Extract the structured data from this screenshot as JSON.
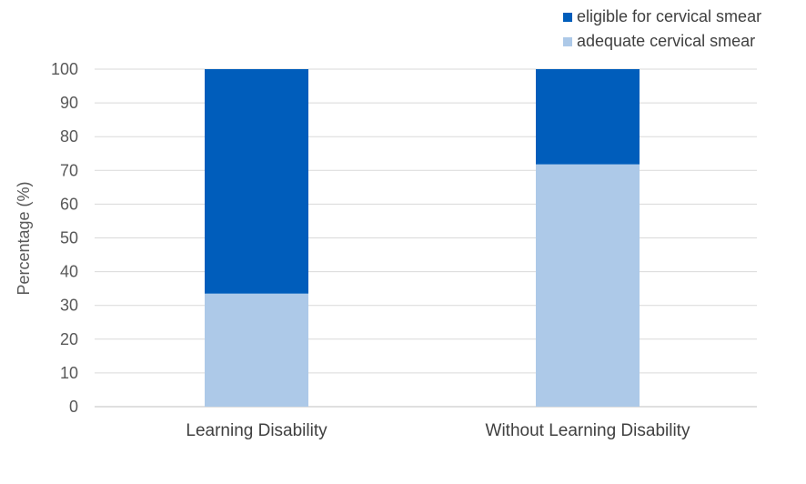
{
  "chart_data": {
    "type": "bar",
    "stacked": true,
    "categories": [
      "Learning Disability",
      "Without Learning Disability"
    ],
    "series": [
      {
        "name": "adequate cervical smear",
        "values": [
          33.5,
          71.8
        ],
        "color": "#adc9e8"
      },
      {
        "name": "eligible for cervical smear",
        "values": [
          66.5,
          28.2
        ],
        "color": "#005dbb"
      }
    ],
    "title": "",
    "xlabel": "",
    "ylabel": "Percentage (%)",
    "ylim": [
      0,
      100
    ],
    "yticks": [
      0,
      10,
      20,
      30,
      40,
      50,
      60,
      70,
      80,
      90,
      100
    ],
    "grid": true,
    "legend_position": "top-right",
    "legend_order": [
      "eligible for cervical smear",
      "adequate cervical smear"
    ]
  }
}
